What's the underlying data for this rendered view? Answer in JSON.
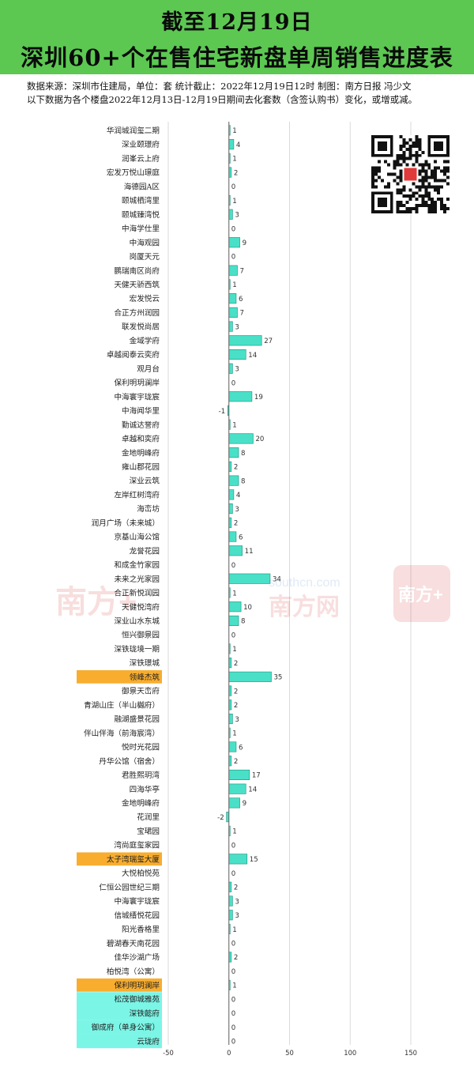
{
  "header": {
    "title_line1": "截至12月19日",
    "title_line2": "深圳60+个在售住宅新盘单周销售进度表",
    "source": "数据来源：深圳市住建局，单位：套  统计截止：2022年12月19日12时  制图：南方日报 冯少文",
    "note": "以下数据为各个楼盘2022年12月13日-12月19日期间去化套数（含签认购书）变化，或增或减。"
  },
  "watermark": {
    "brand_left": "南方+",
    "site": "southcn.com",
    "brand_center": "南方网",
    "brand_right": "南方+"
  },
  "colors": {
    "header_bg": "#5cc852",
    "bar_fill": "#49e0c7",
    "bar_stroke": "#1b8f7a",
    "highlight_orange": "#f8ad2f",
    "highlight_cyan": "#7bf5e6",
    "axis_line": "#666666",
    "grid_line": "#d9d9d9"
  },
  "qr_icon": "qr-code-icon",
  "chart_data": {
    "type": "bar",
    "orientation": "horizontal",
    "xlim": [
      -50,
      150
    ],
    "xticks": [
      "-50",
      "0",
      "50",
      "100",
      "150"
    ],
    "grid": true,
    "categories": [
      "华润城润玺二期",
      "深业颐璟府",
      "润峯云上府",
      "宏发万悦山璟庭",
      "海德园A区",
      "颐城栖湾里",
      "颐城臻湾悦",
      "中海学仕里",
      "中海观园",
      "岗厦天元",
      "鹏瑞南区尚府",
      "天健天骄西筑",
      "宏发悦云",
      "合正方州润园",
      "联发悦尚居",
      "金域学府",
      "卓越阅泰云奕府",
      "观月台",
      "保利明玥澜岸",
      "中海寰宇珑宸",
      "中海闻华里",
      "勤诚达誉府",
      "卓越和奕府",
      "金地明峰府",
      "雍山郡花园",
      "深业云筑",
      "左岸红树湾府",
      "海峦坊",
      "润月广场（未来城）",
      "京基山海公馆",
      "龙誉花园",
      "和成金竹家园",
      "未来之光家园",
      "合正新悦润园",
      "天健悦湾府",
      "深业山水东城",
      "恒兴御景园",
      "深铁珑境一期",
      "深铁璟城",
      "领峰杰筑",
      "御景天峦府",
      "青湖山庄（半山樾府）",
      "融湖盛景花园",
      "伴山伴海（前海宸湾）",
      "悦时光花园",
      "丹华公馆（宿舍）",
      "君胜熙玥湾",
      "四海华亭",
      "金地明峰府",
      "花润里",
      "宝珺园",
      "湾尚庭玺家园",
      "太子湾瑞玺大厦",
      "大悦柏悦苑",
      "仁恒公园世纪三期",
      "中海寰宇珑宸",
      "信城缙悦花园",
      "阳光香格里",
      "碧湖春天南花园",
      "佳华沙湖广场",
      "柏悦湾（公寓）",
      "保利明玥澜岸",
      "松茂御城雅苑",
      "深铁懿府",
      "御成府（单身公寓）",
      "云珑府"
    ],
    "values": [
      1,
      4,
      1,
      2,
      0,
      1,
      3,
      0,
      9,
      0,
      7,
      1,
      6,
      7,
      3,
      27,
      14,
      3,
      0,
      19,
      -1,
      1,
      20,
      8,
      2,
      8,
      4,
      3,
      2,
      6,
      11,
      0,
      34,
      1,
      10,
      8,
      0,
      1,
      2,
      35,
      2,
      2,
      3,
      1,
      6,
      2,
      17,
      14,
      9,
      -2,
      1,
      0,
      15,
      0,
      2,
      3,
      3,
      1,
      0,
      2,
      0,
      1,
      0,
      0,
      0,
      0
    ],
    "highlight_orange": [
      "领峰杰筑",
      "太子湾瑞玺大厦",
      "保利明玥澜岸"
    ],
    "highlight_cyan": [
      "松茂御城雅苑",
      "深铁懿府",
      "御成府（单身公寓）",
      "云珑府"
    ],
    "highlight_indices_orange": [
      39,
      52,
      61
    ],
    "highlight_indices_cyan": [
      62,
      63,
      64,
      65
    ],
    "unit": "套"
  }
}
